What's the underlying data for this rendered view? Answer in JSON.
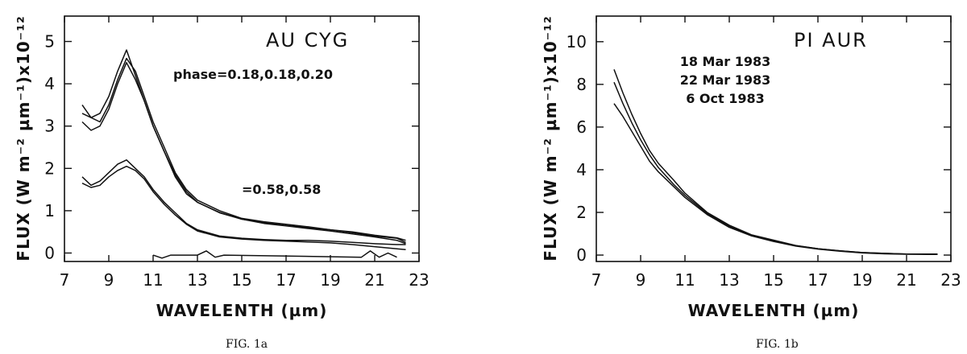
{
  "chart_data": [
    {
      "type": "line",
      "title": "AU CYG",
      "xlabel": "WAVELENTH (µm)",
      "ylabel": "FLUX (W m⁻² µm⁻¹)x10⁻¹²",
      "xlim": [
        7,
        23
      ],
      "ylim": [
        -0.2,
        5.6
      ],
      "xticks": [
        "7",
        "9",
        "11",
        "13",
        "15",
        "17",
        "19",
        "21",
        "23"
      ],
      "yticks": [
        "0",
        "1",
        "2",
        "3",
        "4",
        "5"
      ],
      "annotations": [
        "phase=0.18,0.18,0.20",
        "=0.58,0.58"
      ],
      "caption": "FIG. 1a",
      "series": [
        {
          "x": [
            7.8,
            8.2,
            8.6,
            9.0,
            9.4,
            9.8,
            10.2,
            10.6,
            11.0,
            11.5,
            12.0,
            12.5,
            13.0,
            14.0,
            15.0,
            16.0,
            17.0,
            18.0,
            19.0,
            20.0,
            21.0,
            22.0,
            22.4
          ],
          "y": [
            3.5,
            3.2,
            3.3,
            3.7,
            4.3,
            4.8,
            4.2,
            3.6,
            3.0,
            2.4,
            1.8,
            1.4,
            1.2,
            0.95,
            0.8,
            0.72,
            0.65,
            0.6,
            0.55,
            0.48,
            0.4,
            0.35,
            0.25
          ]
        },
        {
          "x": [
            7.8,
            8.2,
            8.6,
            9.0,
            9.4,
            9.8,
            10.2,
            10.6,
            11.0,
            11.5,
            12.0,
            12.5,
            13.0,
            14.0,
            15.0,
            16.0,
            17.0,
            18.0,
            19.0,
            20.0,
            21.0,
            22.0,
            22.4
          ],
          "y": [
            3.3,
            3.2,
            3.1,
            3.5,
            4.1,
            4.6,
            4.3,
            3.7,
            3.1,
            2.5,
            1.9,
            1.5,
            1.25,
            1.0,
            0.82,
            0.74,
            0.68,
            0.62,
            0.55,
            0.5,
            0.42,
            0.36,
            0.3
          ]
        },
        {
          "x": [
            7.8,
            8.2,
            8.6,
            9.0,
            9.4,
            9.8,
            10.2,
            10.6,
            11.0,
            11.5,
            12.0,
            12.5,
            13.0,
            14.0,
            15.0,
            16.0,
            17.0,
            18.0,
            19.0,
            20.0,
            21.0,
            22.0,
            22.4
          ],
          "y": [
            3.1,
            2.9,
            3.0,
            3.4,
            4.0,
            4.5,
            4.1,
            3.6,
            3.0,
            2.4,
            1.85,
            1.45,
            1.2,
            0.96,
            0.8,
            0.7,
            0.64,
            0.58,
            0.52,
            0.45,
            0.38,
            0.3,
            0.22
          ]
        },
        {
          "x": [
            7.8,
            8.2,
            8.6,
            9.0,
            9.4,
            9.8,
            10.2,
            10.6,
            11.0,
            11.5,
            12.0,
            12.5,
            13.0,
            14.0,
            15.0,
            16.0,
            17.0,
            18.0,
            19.0,
            20.0,
            21.0,
            22.0,
            22.4
          ],
          "y": [
            1.8,
            1.6,
            1.7,
            1.9,
            2.1,
            2.2,
            2.0,
            1.8,
            1.5,
            1.2,
            0.95,
            0.7,
            0.55,
            0.4,
            0.35,
            0.32,
            0.3,
            0.3,
            0.28,
            0.25,
            0.22,
            0.2,
            0.2
          ]
        },
        {
          "x": [
            7.8,
            8.2,
            8.6,
            9.0,
            9.4,
            9.8,
            10.2,
            10.6,
            11.0,
            11.5,
            12.0,
            12.5,
            13.0,
            14.0,
            15.0,
            16.0,
            17.0,
            18.0,
            19.0,
            20.0,
            21.0,
            22.0,
            22.4
          ],
          "y": [
            1.65,
            1.55,
            1.6,
            1.8,
            1.95,
            2.05,
            1.95,
            1.75,
            1.45,
            1.15,
            0.9,
            0.68,
            0.52,
            0.38,
            0.33,
            0.3,
            0.28,
            0.26,
            0.24,
            0.2,
            0.15,
            0.1,
            0.08
          ]
        },
        {
          "x": [
            11.0,
            11.4,
            11.8,
            13.0,
            13.4,
            13.8,
            14.2,
            20.4,
            20.8,
            21.2,
            21.6,
            22.0
          ],
          "y": [
            -0.05,
            -0.12,
            -0.05,
            -0.05,
            0.05,
            -0.1,
            -0.05,
            -0.1,
            0.05,
            -0.1,
            0.0,
            -0.1
          ]
        }
      ]
    },
    {
      "type": "line",
      "title": "PI AUR",
      "xlabel": "WAVELENTH (µm)",
      "ylabel": "FLUX (W m⁻² µm⁻¹)x10⁻¹²",
      "xlim": [
        7,
        23
      ],
      "ylim": [
        -0.3,
        11.2
      ],
      "xticks": [
        "7",
        "9",
        "11",
        "13",
        "15",
        "17",
        "19",
        "21",
        "23"
      ],
      "yticks": [
        "0",
        "2",
        "4",
        "6",
        "8",
        "10"
      ],
      "annotations": [
        "18 Mar 1983",
        "22 Mar 1983",
        "6 Oct 1983"
      ],
      "caption": "FIG. 1b",
      "series": [
        {
          "x": [
            7.8,
            8.2,
            8.6,
            9.0,
            9.4,
            9.8,
            10.5,
            11.0,
            12.0,
            13.0,
            14.0,
            15.0,
            16.0,
            17.0,
            18.0,
            19.0,
            20.0,
            21.0,
            22.0,
            22.4
          ],
          "y": [
            8.7,
            7.6,
            6.6,
            5.7,
            4.9,
            4.3,
            3.5,
            2.9,
            2.0,
            1.4,
            0.95,
            0.7,
            0.45,
            0.3,
            0.2,
            0.12,
            0.08,
            0.05,
            0.05,
            0.05
          ]
        },
        {
          "x": [
            7.8,
            8.2,
            8.6,
            9.0,
            9.4,
            9.8,
            10.5,
            11.0,
            12.0,
            13.0,
            14.0,
            15.0,
            16.0,
            17.0,
            18.0,
            19.0,
            20.0,
            21.0,
            22.0,
            22.4
          ],
          "y": [
            8.1,
            7.1,
            6.2,
            5.4,
            4.7,
            4.1,
            3.3,
            2.8,
            1.95,
            1.35,
            0.92,
            0.66,
            0.44,
            0.3,
            0.2,
            0.12,
            0.08,
            0.05,
            0.04,
            0.04
          ]
        },
        {
          "x": [
            7.8,
            8.2,
            8.6,
            9.0,
            9.4,
            9.8,
            10.5,
            11.0,
            12.0,
            13.0,
            14.0,
            15.0,
            16.0,
            17.0,
            18.0,
            19.0,
            20.0,
            21.0,
            22.0,
            22.4
          ],
          "y": [
            7.1,
            6.5,
            5.8,
            5.1,
            4.4,
            3.9,
            3.2,
            2.7,
            1.9,
            1.3,
            0.9,
            0.64,
            0.42,
            0.28,
            0.18,
            0.1,
            0.06,
            0.04,
            0.03,
            0.03
          ]
        }
      ]
    }
  ]
}
